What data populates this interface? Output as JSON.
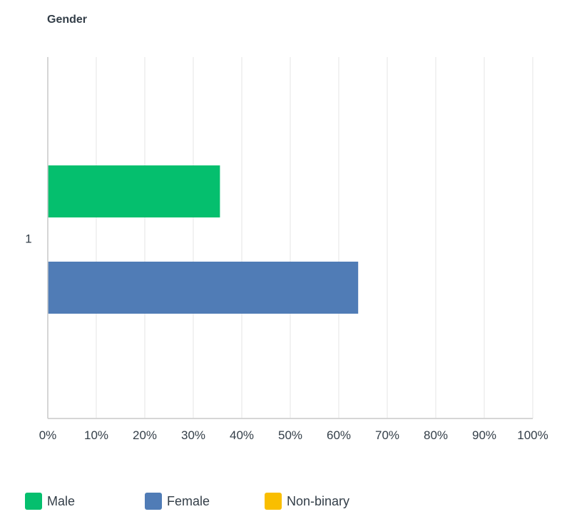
{
  "chart_data": {
    "type": "bar",
    "orientation": "horizontal",
    "title": "Gender",
    "categories": [
      "1"
    ],
    "series": [
      {
        "name": "Male",
        "values": [
          35.5
        ],
        "color": "#05bf6e"
      },
      {
        "name": "Female",
        "values": [
          64.0
        ],
        "color": "#507cb6"
      },
      {
        "name": "Non-binary",
        "values": [
          0
        ],
        "color": "#f9be00"
      }
    ],
    "xlim": [
      0,
      100
    ],
    "x_ticks": [
      "0%",
      "10%",
      "20%",
      "30%",
      "40%",
      "50%",
      "60%",
      "70%",
      "80%",
      "90%",
      "100%"
    ],
    "grid": "vertical",
    "legend_position": "bottom"
  }
}
